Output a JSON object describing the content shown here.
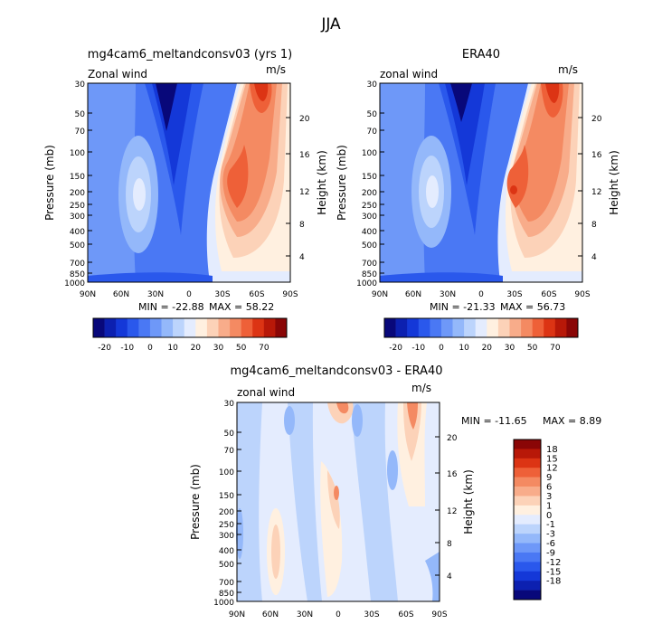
{
  "page_title": "JJA",
  "chart_data": [
    {
      "type": "heatmap",
      "title": "mg4cam6_meltandconsv03 (yrs 1)",
      "field_label": "Zonal wind",
      "units": "m/s",
      "ylabel": "Pressure (mb)",
      "ylabel_right": "Height (km)",
      "x_ticks": [
        "90N",
        "60N",
        "30N",
        "0",
        "30S",
        "60S",
        "90S"
      ],
      "y_ticks": [
        "30",
        "50",
        "70",
        "100",
        "150",
        "200",
        "250",
        "300",
        "400",
        "500",
        "700",
        "850",
        "1000"
      ],
      "y_right_ticks": [
        "20",
        "16",
        "12",
        "8",
        "4"
      ],
      "stats": {
        "min_text": "MIN = -22.88",
        "max_text": "MAX =  58.22",
        "min": -22.88,
        "max": 58.22
      },
      "colorbar": {
        "labels": [
          "-20",
          "-10",
          "0",
          "10",
          "20",
          "30",
          "50",
          "70"
        ]
      }
    },
    {
      "type": "heatmap",
      "title": "ERA40",
      "field_label": "zonal wind",
      "units": "m/s",
      "ylabel": "Pressure (mb)",
      "ylabel_right": "Height (km)",
      "x_ticks": [
        "90N",
        "60N",
        "30N",
        "0",
        "30S",
        "60S",
        "90S"
      ],
      "y_ticks": [
        "30",
        "50",
        "70",
        "100",
        "150",
        "200",
        "250",
        "300",
        "400",
        "500",
        "700",
        "850",
        "1000"
      ],
      "y_right_ticks": [
        "20",
        "16",
        "12",
        "8",
        "4"
      ],
      "stats": {
        "min_text": "MIN = -21.33",
        "max_text": "MAX =  56.73",
        "min": -21.33,
        "max": 56.73
      },
      "colorbar": {
        "labels": [
          "-20",
          "-10",
          "0",
          "10",
          "20",
          "30",
          "50",
          "70"
        ]
      }
    },
    {
      "type": "heatmap",
      "title": "mg4cam6_meltandconsv03 - ERA40",
      "field_label": "zonal wind",
      "units": "m/s",
      "ylabel": "Pressure (mb)",
      "ylabel_right": "Height (km)",
      "x_ticks": [
        "90N",
        "60N",
        "30N",
        "0",
        "30S",
        "60S",
        "90S"
      ],
      "y_ticks": [
        "30",
        "50",
        "70",
        "100",
        "150",
        "200",
        "250",
        "300",
        "400",
        "500",
        "700",
        "850",
        "1000"
      ],
      "y_right_ticks": [
        "20",
        "16",
        "12",
        "8",
        "4"
      ],
      "stats": {
        "min_text": "MIN = -11.65",
        "max_text": "MAX =   8.89",
        "min": -11.65,
        "max": 8.89
      },
      "colorbar": {
        "labels": [
          "18",
          "15",
          "12",
          "9",
          "6",
          "3",
          "1",
          "0",
          "-1",
          "-3",
          "-6",
          "-9",
          "-12",
          "-15",
          "-18"
        ]
      }
    }
  ],
  "colors": {
    "wind_scale": [
      "#08087a",
      "#0c20b0",
      "#1438d8",
      "#2a58ec",
      "#4a78f4",
      "#6e98f8",
      "#94b8fa",
      "#bcd4fc",
      "#e4ecfe",
      "#fff0e0",
      "#fcd2b8",
      "#f8ac8a",
      "#f48a62",
      "#ee6038",
      "#dc3414",
      "#b81808",
      "#8a0606"
    ],
    "diff_scale": [
      "#8a0606",
      "#b81808",
      "#dc3414",
      "#ee6038",
      "#f48a62",
      "#f8ac8a",
      "#fcd2b8",
      "#fff0e0",
      "#e4ecfe",
      "#bcd4fc",
      "#94b8fa",
      "#6e98f8",
      "#4a78f4",
      "#2a58ec",
      "#1438d8",
      "#0c20b0",
      "#08087a"
    ]
  }
}
